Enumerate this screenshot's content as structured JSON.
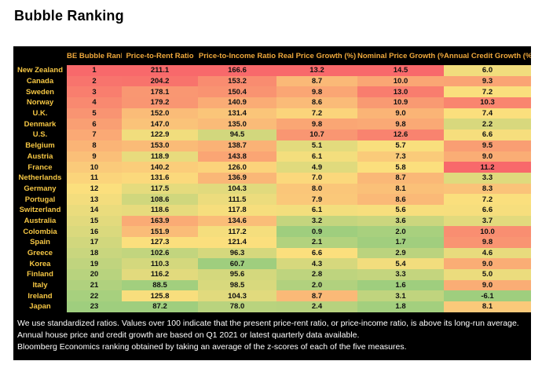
{
  "page_title": "Bubble Ranking",
  "styles": {
    "panel_bg": "#000000",
    "header_text_color": "#f0a93c",
    "country_text_color": "#f6c744",
    "value_text_color": "#111111",
    "note_text_color": "#ffffff"
  },
  "chart_data": {
    "type": "table",
    "subtype": "heatmap-table",
    "title": "Bubble Ranking",
    "columns": [
      "BE Bubble Rank",
      "Price-to-Rent Ratio",
      "Price-to-Income Ratio",
      "Real Price Growth (%)",
      "Nominal Price Growth (%)",
      "Annual Credit Growth (%)"
    ],
    "row_header_label": "",
    "rows": [
      {
        "country": "New Zealand",
        "values": [
          1,
          211.1,
          166.6,
          13.2,
          14.5,
          6.0
        ]
      },
      {
        "country": "Canada",
        "values": [
          2,
          204.2,
          153.2,
          8.7,
          10.0,
          9.3
        ]
      },
      {
        "country": "Sweden",
        "values": [
          3,
          178.1,
          150.4,
          9.8,
          13.0,
          7.2
        ]
      },
      {
        "country": "Norway",
        "values": [
          4,
          179.2,
          140.9,
          8.6,
          10.9,
          10.3
        ]
      },
      {
        "country": "U.K.",
        "values": [
          5,
          152.0,
          131.4,
          7.2,
          9.0,
          7.4
        ]
      },
      {
        "country": "Denmark",
        "values": [
          6,
          147.0,
          135.0,
          9.8,
          9.8,
          2.2
        ]
      },
      {
        "country": "U.S.",
        "values": [
          7,
          122.9,
          94.5,
          10.7,
          12.6,
          6.6
        ]
      },
      {
        "country": "Belgium",
        "values": [
          8,
          153.0,
          138.7,
          5.1,
          5.7,
          9.5
        ]
      },
      {
        "country": "Austria",
        "values": [
          9,
          118.9,
          143.8,
          6.1,
          7.3,
          9.0
        ]
      },
      {
        "country": "France",
        "values": [
          10,
          140.2,
          126.0,
          4.9,
          5.8,
          11.2
        ]
      },
      {
        "country": "Netherlands",
        "values": [
          11,
          131.6,
          136.9,
          7.0,
          8.7,
          3.3
        ]
      },
      {
        "country": "Germany",
        "values": [
          12,
          117.5,
          104.3,
          8.0,
          8.1,
          8.3
        ]
      },
      {
        "country": "Portugal",
        "values": [
          13,
          108.6,
          111.5,
          7.9,
          8.6,
          7.2
        ]
      },
      {
        "country": "Switzerland",
        "values": [
          14,
          118.6,
          117.8,
          6.1,
          5.6,
          6.6
        ]
      },
      {
        "country": "Australia",
        "values": [
          15,
          163.9,
          134.6,
          3.2,
          3.6,
          3.7
        ]
      },
      {
        "country": "Colombia",
        "values": [
          16,
          151.9,
          117.2,
          0.9,
          2.0,
          10.0
        ]
      },
      {
        "country": "Spain",
        "values": [
          17,
          127.3,
          121.4,
          2.1,
          1.7,
          9.8
        ]
      },
      {
        "country": "Greece",
        "values": [
          18,
          102.6,
          96.3,
          6.6,
          2.9,
          4.6
        ]
      },
      {
        "country": "Korea",
        "values": [
          19,
          110.3,
          60.7,
          4.3,
          5.4,
          9.0
        ]
      },
      {
        "country": "Finland",
        "values": [
          20,
          116.2,
          95.6,
          2.8,
          3.3,
          5.0
        ]
      },
      {
        "country": "Italy",
        "values": [
          21,
          88.5,
          98.5,
          2.0,
          1.6,
          9.0
        ]
      },
      {
        "country": "Ireland",
        "values": [
          22,
          125.8,
          104.3,
          8.7,
          3.1,
          -6.1
        ]
      },
      {
        "country": "Japan",
        "values": [
          23,
          87.2,
          78.0,
          2.4,
          1.8,
          8.1
        ]
      }
    ],
    "heatmap": {
      "high_color": "#f8696b",
      "mid_color": "#fbdf7d",
      "low_color": "#9fce7e",
      "midpoint": "median",
      "note": "per-column 3-color scale; rank column reversed (rank 1 = red, rank 23 = green)",
      "rank_column_reversed": true
    },
    "notes": [
      "We use standardized ratios. Values over 100 indicate that the present price-rent ratio, or price-income ratio, is above its long-run average.",
      "Annual house price and credit growth are based on Q1 2021 or latest quarterly data available.",
      "Bloomberg Economics ranking obtained by taking an average of the z-scores of each of the five measures."
    ]
  }
}
